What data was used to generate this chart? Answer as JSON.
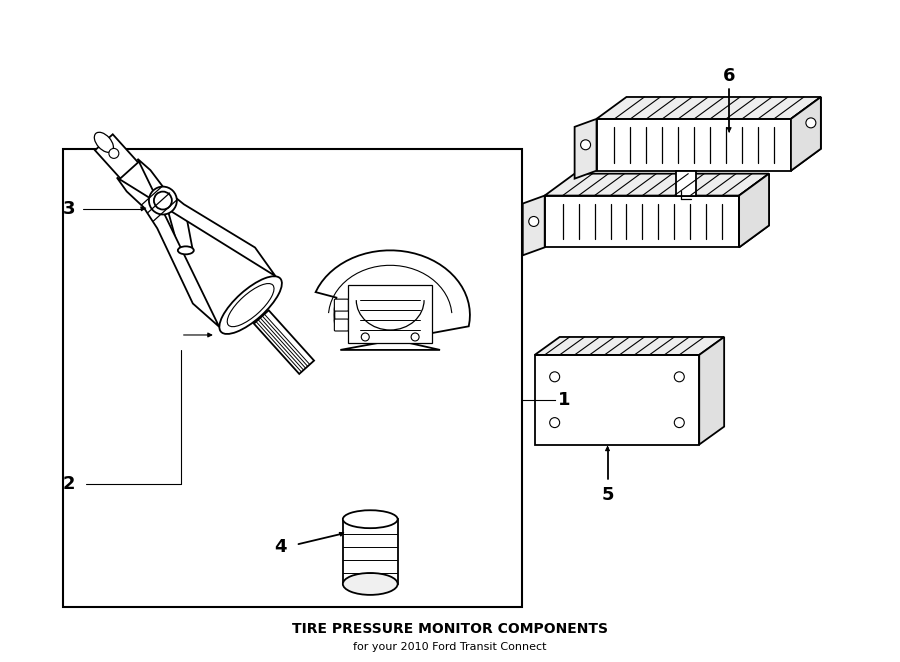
{
  "title": "TIRE PRESSURE MONITOR COMPONENTS",
  "subtitle": "for your 2010 Ford Transit Connect",
  "bg": "#ffffff",
  "lc": "#000000",
  "fig_width": 9.0,
  "fig_height": 6.62,
  "dpi": 100
}
